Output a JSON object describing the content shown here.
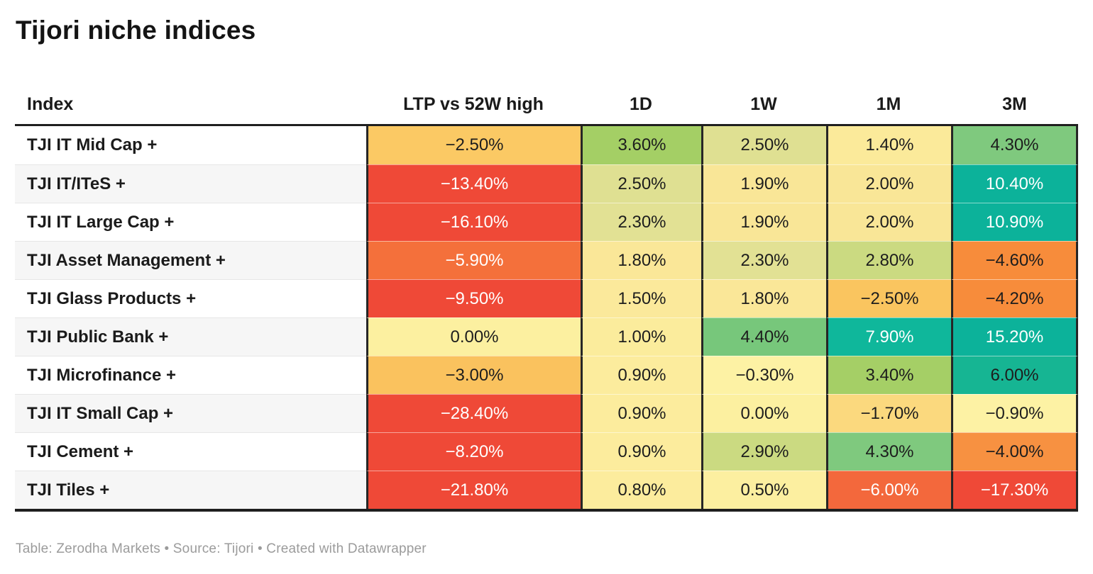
{
  "title": "Tijori niche indices",
  "footer": "Table: Zerodha Markets • Source: Tijori • Created with Datawrapper",
  "accent_colors": {
    "negative_strong": "#EF4937",
    "negative_orange": "#F4703B",
    "neutral_yellow": "#FCEE9E",
    "positive_green": "#7FC97E",
    "positive_teal": "#0CB29A",
    "border_dark": "#1f1f1f",
    "row_alt_bg": "#f6f6f6",
    "footer_gray": "#9b9b9b"
  },
  "table": {
    "columns": [
      "Index",
      "LTP vs 52W high",
      "1D",
      "1W",
      "1M",
      "3M"
    ],
    "rows": [
      {
        "label": "TJI IT Mid Cap +",
        "cells": [
          {
            "v": "−2.50%",
            "bg": "#FBC964",
            "fg": "#1d1d1d"
          },
          {
            "v": "3.60%",
            "bg": "#A4CF65",
            "fg": "#1d1d1d"
          },
          {
            "v": "2.50%",
            "bg": "#DFE092",
            "fg": "#1d1d1d"
          },
          {
            "v": "1.40%",
            "bg": "#FBEA9A",
            "fg": "#1d1d1d"
          },
          {
            "v": "4.30%",
            "bg": "#7FC97E",
            "fg": "#1d1d1d"
          }
        ]
      },
      {
        "label": "TJI IT/ITeS +",
        "cells": [
          {
            "v": "−13.40%",
            "bg": "#EF4937",
            "fg": "#ffffff"
          },
          {
            "v": "2.50%",
            "bg": "#DFE092",
            "fg": "#1d1d1d"
          },
          {
            "v": "1.90%",
            "bg": "#F9E697",
            "fg": "#1d1d1d"
          },
          {
            "v": "2.00%",
            "bg": "#F9E697",
            "fg": "#1d1d1d"
          },
          {
            "v": "10.40%",
            "bg": "#0CB29A",
            "fg": "#ffffff"
          }
        ]
      },
      {
        "label": "TJI IT Large Cap +",
        "cells": [
          {
            "v": "−16.10%",
            "bg": "#EF4937",
            "fg": "#ffffff"
          },
          {
            "v": "2.30%",
            "bg": "#E2E194",
            "fg": "#1d1d1d"
          },
          {
            "v": "1.90%",
            "bg": "#F9E697",
            "fg": "#1d1d1d"
          },
          {
            "v": "2.00%",
            "bg": "#F9E697",
            "fg": "#1d1d1d"
          },
          {
            "v": "10.90%",
            "bg": "#0CB29A",
            "fg": "#ffffff"
          }
        ]
      },
      {
        "label": "TJI Asset Management +",
        "cells": [
          {
            "v": "−5.90%",
            "bg": "#F4703B",
            "fg": "#ffffff"
          },
          {
            "v": "1.80%",
            "bg": "#FAE798",
            "fg": "#1d1d1d"
          },
          {
            "v": "2.30%",
            "bg": "#E2E194",
            "fg": "#1d1d1d"
          },
          {
            "v": "2.80%",
            "bg": "#CBDA81",
            "fg": "#1d1d1d"
          },
          {
            "v": "−4.60%",
            "bg": "#F78C3B",
            "fg": "#1d1d1d"
          }
        ]
      },
      {
        "label": "TJI Glass Products +",
        "cells": [
          {
            "v": "−9.50%",
            "bg": "#EF4937",
            "fg": "#ffffff"
          },
          {
            "v": "1.50%",
            "bg": "#FBE99B",
            "fg": "#1d1d1d"
          },
          {
            "v": "1.80%",
            "bg": "#FAE798",
            "fg": "#1d1d1d"
          },
          {
            "v": "−2.50%",
            "bg": "#FAC55F",
            "fg": "#1d1d1d"
          },
          {
            "v": "−4.20%",
            "bg": "#F78C3B",
            "fg": "#1d1d1d"
          }
        ]
      },
      {
        "label": "TJI Public Bank +",
        "cells": [
          {
            "v": "0.00%",
            "bg": "#FCF0A0",
            "fg": "#1d1d1d"
          },
          {
            "v": "1.00%",
            "bg": "#FBEC9C",
            "fg": "#1d1d1d"
          },
          {
            "v": "4.40%",
            "bg": "#77C77B",
            "fg": "#1d1d1d"
          },
          {
            "v": "7.90%",
            "bg": "#0FB79B",
            "fg": "#ffffff"
          },
          {
            "v": "15.20%",
            "bg": "#0CB29A",
            "fg": "#ffffff"
          }
        ]
      },
      {
        "label": "TJI Microfinance +",
        "cells": [
          {
            "v": "−3.00%",
            "bg": "#FAC25E",
            "fg": "#1d1d1d"
          },
          {
            "v": "0.90%",
            "bg": "#FCEC9D",
            "fg": "#1d1d1d"
          },
          {
            "v": "−0.30%",
            "bg": "#FDF2A4",
            "fg": "#1d1d1d"
          },
          {
            "v": "3.40%",
            "bg": "#A5CF66",
            "fg": "#1d1d1d"
          },
          {
            "v": "6.00%",
            "bg": "#16B593",
            "fg": "#1d1d1d"
          }
        ]
      },
      {
        "label": "TJI IT Small Cap +",
        "cells": [
          {
            "v": "−28.40%",
            "bg": "#EF4937",
            "fg": "#ffffff"
          },
          {
            "v": "0.90%",
            "bg": "#FCEC9D",
            "fg": "#1d1d1d"
          },
          {
            "v": "0.00%",
            "bg": "#FCF0A0",
            "fg": "#1d1d1d"
          },
          {
            "v": "−1.70%",
            "bg": "#FBD97E",
            "fg": "#1d1d1d"
          },
          {
            "v": "−0.90%",
            "bg": "#FDF2A4",
            "fg": "#1d1d1d"
          }
        ]
      },
      {
        "label": "TJI Cement +",
        "cells": [
          {
            "v": "−8.20%",
            "bg": "#EF4937",
            "fg": "#ffffff"
          },
          {
            "v": "0.90%",
            "bg": "#FCEC9D",
            "fg": "#1d1d1d"
          },
          {
            "v": "2.90%",
            "bg": "#CBDA81",
            "fg": "#1d1d1d"
          },
          {
            "v": "4.30%",
            "bg": "#7FC97E",
            "fg": "#1d1d1d"
          },
          {
            "v": "−4.00%",
            "bg": "#F79141",
            "fg": "#1d1d1d"
          }
        ]
      },
      {
        "label": "TJI Tiles +",
        "cells": [
          {
            "v": "−21.80%",
            "bg": "#EF4937",
            "fg": "#ffffff"
          },
          {
            "v": "0.80%",
            "bg": "#FCEC9D",
            "fg": "#1d1d1d"
          },
          {
            "v": "0.50%",
            "bg": "#FCEFA0",
            "fg": "#1d1d1d"
          },
          {
            "v": "−6.00%",
            "bg": "#F3683C",
            "fg": "#ffffff"
          },
          {
            "v": "−17.30%",
            "bg": "#EF4937",
            "fg": "#ffffff"
          }
        ]
      }
    ]
  },
  "chart_data": {
    "type": "table",
    "title": "Tijori niche indices",
    "columns": [
      "Index",
      "LTP vs 52W high",
      "1D",
      "1W",
      "1M",
      "3M"
    ],
    "rows": [
      [
        "TJI IT Mid Cap +",
        -2.5,
        3.6,
        2.5,
        1.4,
        4.3
      ],
      [
        "TJI IT/ITeS +",
        -13.4,
        2.5,
        1.9,
        2.0,
        10.4
      ],
      [
        "TJI IT Large Cap +",
        -16.1,
        2.3,
        1.9,
        2.0,
        10.9
      ],
      [
        "TJI Asset Management +",
        -5.9,
        1.8,
        2.3,
        2.8,
        -4.6
      ],
      [
        "TJI Glass Products +",
        -9.5,
        1.5,
        1.8,
        -2.5,
        -4.2
      ],
      [
        "TJI Public Bank +",
        0.0,
        1.0,
        4.4,
        7.9,
        15.2
      ],
      [
        "TJI Microfinance +",
        -3.0,
        0.9,
        -0.3,
        3.4,
        6.0
      ],
      [
        "TJI IT Small Cap +",
        -28.4,
        0.9,
        0.0,
        -1.7,
        -0.9
      ],
      [
        "TJI Cement +",
        -8.2,
        0.9,
        2.9,
        4.3,
        -4.0
      ],
      [
        "TJI Tiles +",
        -21.8,
        0.8,
        0.5,
        -6.0,
        -17.3
      ]
    ],
    "value_unit": "%",
    "color_scale": "diverging red (negative) → pale yellow (≈0) → green → teal (strong positive)"
  }
}
